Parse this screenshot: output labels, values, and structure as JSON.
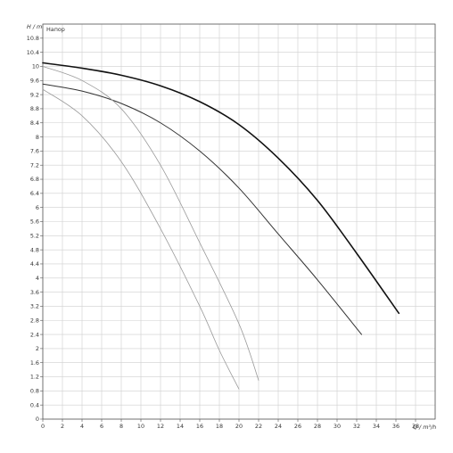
{
  "chart_data": {
    "type": "line",
    "title": "Напор",
    "ylabel": "H / m",
    "xlabel": "Q / m³/h",
    "xlim": [
      0,
      40
    ],
    "ylim": [
      0,
      11.2
    ],
    "x_ticks": [
      0,
      2,
      4,
      6,
      8,
      10,
      12,
      14,
      16,
      18,
      20,
      22,
      24,
      26,
      28,
      30,
      32,
      34,
      36,
      38
    ],
    "y_ticks": [
      0,
      0.4,
      0.8,
      1.2,
      1.6,
      2,
      2.4,
      2.8,
      3.2,
      3.6,
      4,
      4.4,
      4.8,
      5.2,
      5.6,
      6,
      6.4,
      6.8,
      7.2,
      7.6,
      8,
      8.4,
      8.8,
      9.2,
      9.6,
      10,
      10.4,
      10.8
    ],
    "grid": true,
    "series": [
      {
        "color": "#111111",
        "x": [
          0,
          4,
          8,
          12,
          16,
          20,
          24,
          28,
          32,
          36.3
        ],
        "y": [
          10.1,
          9.95,
          9.75,
          9.45,
          9.0,
          8.35,
          7.4,
          6.2,
          4.7,
          3.0
        ]
      },
      {
        "color": "#333333",
        "x": [
          0,
          4,
          8,
          12,
          16,
          20,
          24,
          28,
          32.5
        ],
        "y": [
          9.5,
          9.3,
          8.95,
          8.4,
          7.6,
          6.55,
          5.25,
          3.95,
          2.4
        ]
      },
      {
        "color": "#9a9a9a",
        "x": [
          0,
          4,
          8,
          12,
          16,
          20,
          22
        ],
        "y": [
          10.0,
          9.6,
          8.8,
          7.2,
          5.0,
          2.7,
          1.1
        ]
      },
      {
        "color": "#9a9a9a",
        "x": [
          0,
          4,
          8,
          12,
          16,
          18,
          20
        ],
        "y": [
          9.35,
          8.6,
          7.3,
          5.4,
          3.2,
          1.95,
          0.85
        ]
      }
    ]
  }
}
